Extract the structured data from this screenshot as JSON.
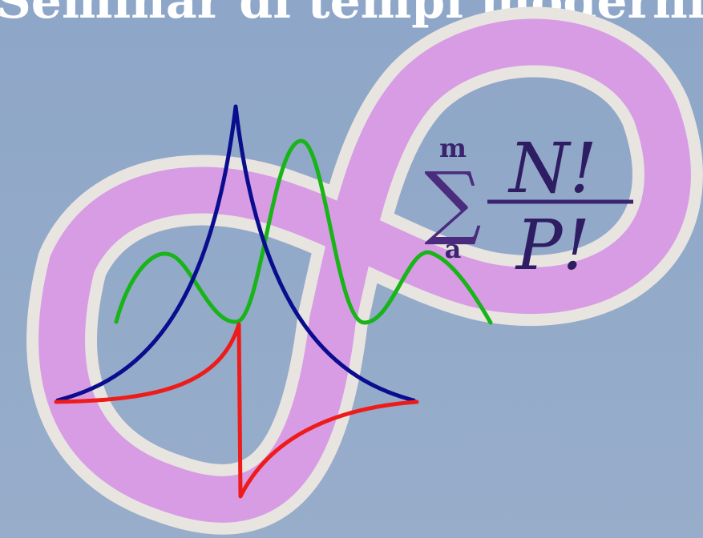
{
  "title": "Seminar di tempi moderni",
  "colors": {
    "background": "#94aac9",
    "ribbon_fill": "#d79ce4",
    "ribbon_edge": "#e9e5e1",
    "formula": "#3a2470",
    "blue_curve": "#0a0d8e",
    "green_curve": "#18b418",
    "red_curve": "#ee1b1b"
  },
  "formula": {
    "upper_limit": "m",
    "lower_limit": "a",
    "numerator": "N!",
    "denominator": "P!"
  },
  "curves": [
    "blue-cusp-curve",
    "green-wave-curve",
    "red-cusp-curve"
  ]
}
